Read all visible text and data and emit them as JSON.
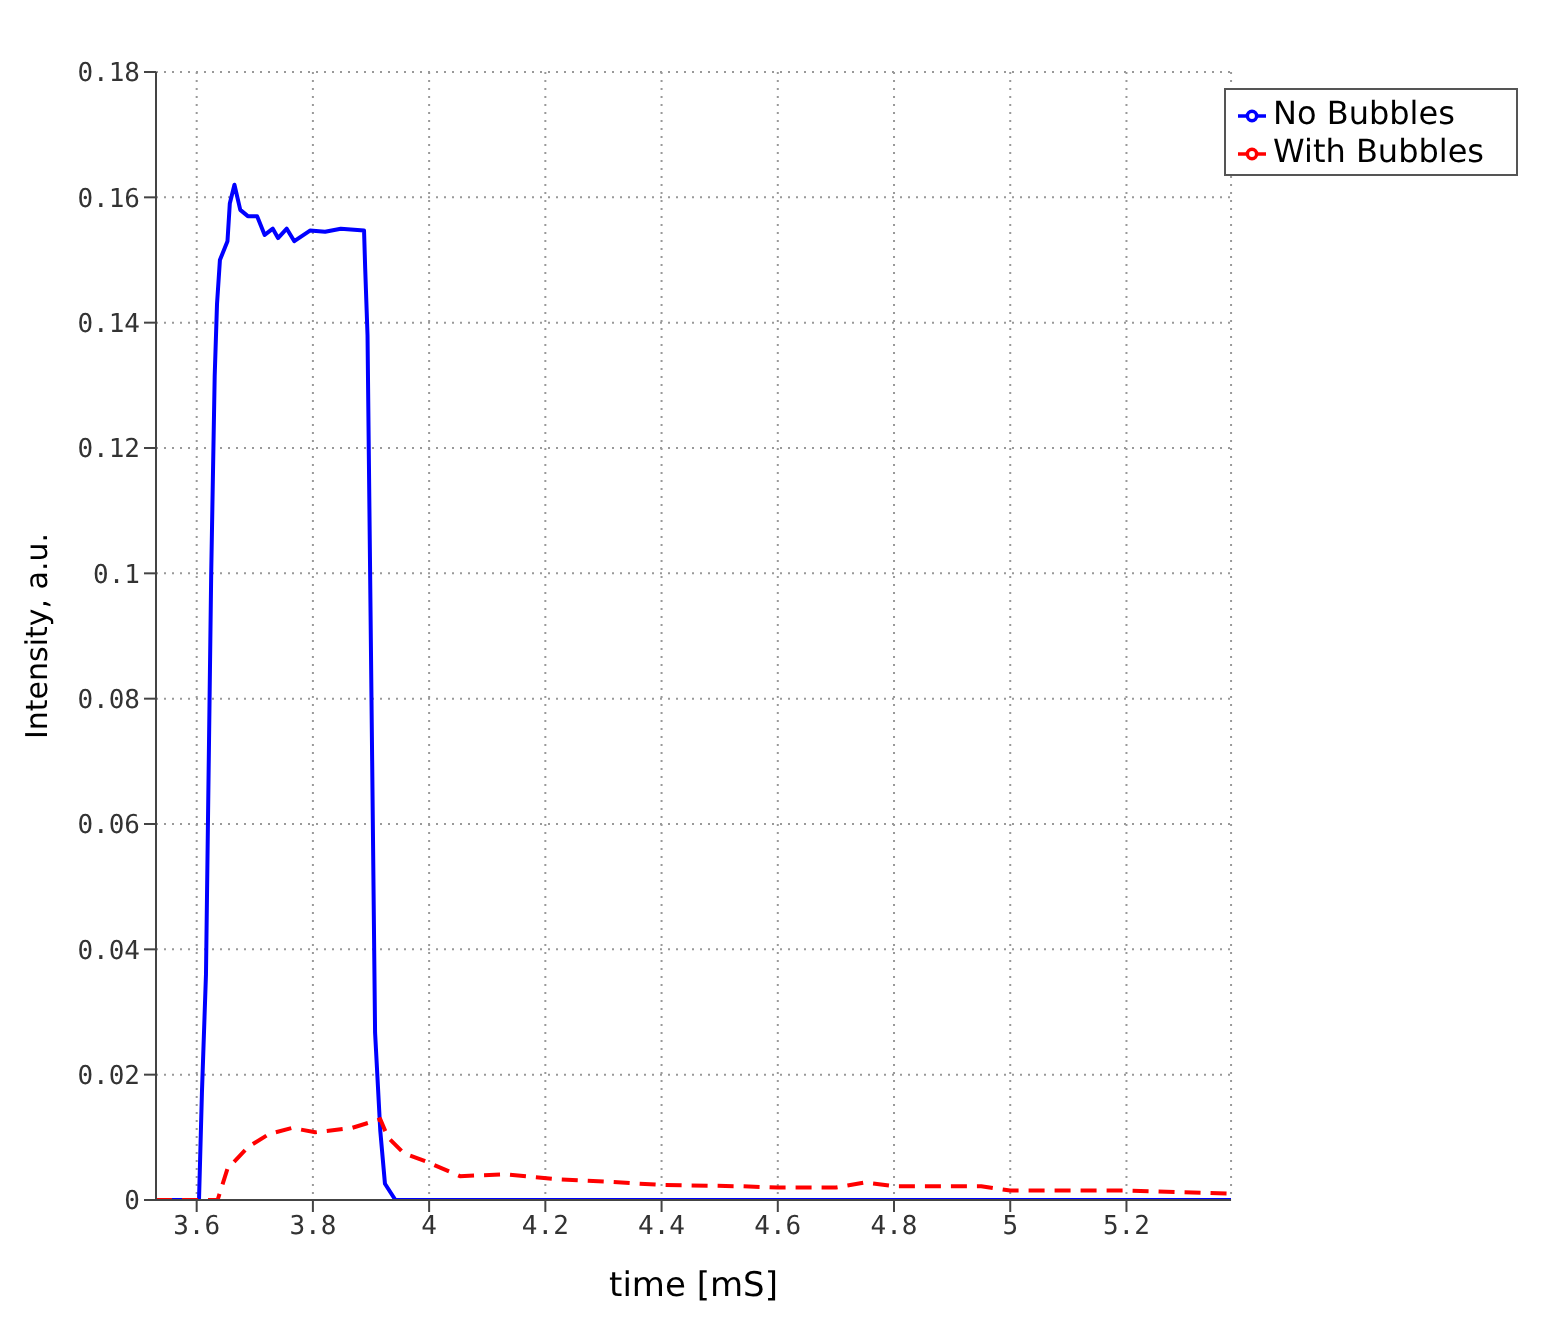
{
  "chart_data": {
    "type": "line",
    "xlabel": "time [mS]",
    "ylabel": "Intensity, a.u.",
    "xlim": [
      3.53,
      5.38
    ],
    "xticks": [
      3.6,
      3.8,
      4,
      4.2,
      4.4,
      4.6,
      4.8,
      5,
      5.2
    ],
    "ylim": [
      0,
      0.18
    ],
    "yticks": [
      0,
      0.02,
      0.04,
      0.06,
      0.08,
      0.1,
      0.12,
      0.14,
      0.16,
      0.18
    ],
    "grid": true,
    "legend": "top right",
    "marker": "none",
    "series": [
      {
        "name": "No Bubbles",
        "color": "#0000ff",
        "line_style": "solid",
        "x": [
          3.53,
          3.6,
          3.604,
          3.609,
          3.616,
          3.625,
          3.631,
          3.635,
          3.64,
          3.653,
          3.657,
          3.665,
          3.675,
          3.688,
          3.704,
          3.717,
          3.731,
          3.74,
          3.755,
          3.768,
          3.795,
          3.821,
          3.848,
          3.888,
          3.89,
          3.894,
          3.902,
          3.907,
          3.916,
          3.924,
          3.942,
          4.2,
          4.6,
          5.0,
          5.38
        ],
        "values": [
          0,
          0,
          0,
          0.017,
          0.036,
          0.1,
          0.1315,
          0.143,
          0.15,
          0.153,
          0.159,
          0.162,
          0.158,
          0.157,
          0.157,
          0.154,
          0.155,
          0.1535,
          0.155,
          0.153,
          0.1547,
          0.1545,
          0.155,
          0.1547,
          0.1486,
          0.138,
          0.07,
          0.0267,
          0.011,
          0.0026,
          0,
          0,
          0,
          0,
          0
        ]
      },
      {
        "name": "With Bubbles",
        "color": "#ff0000",
        "line_style": "dashed",
        "x": [
          3.53,
          3.636,
          3.653,
          3.689,
          3.724,
          3.764,
          3.804,
          3.867,
          3.916,
          3.929,
          3.956,
          3.996,
          4.053,
          4.133,
          4.222,
          4.311,
          4.4,
          4.533,
          4.6,
          4.7,
          4.75,
          4.8,
          4.95,
          5.0,
          5.2,
          5.38
        ],
        "values": [
          0,
          0,
          0.005,
          0.0085,
          0.0105,
          0.0115,
          0.0108,
          0.0115,
          0.0129,
          0.01,
          0.0075,
          0.0061,
          0.0038,
          0.0041,
          0.0033,
          0.0029,
          0.0024,
          0.0022,
          0.002,
          0.002,
          0.0028,
          0.0022,
          0.0022,
          0.0015,
          0.0015,
          0.001
        ]
      }
    ]
  }
}
